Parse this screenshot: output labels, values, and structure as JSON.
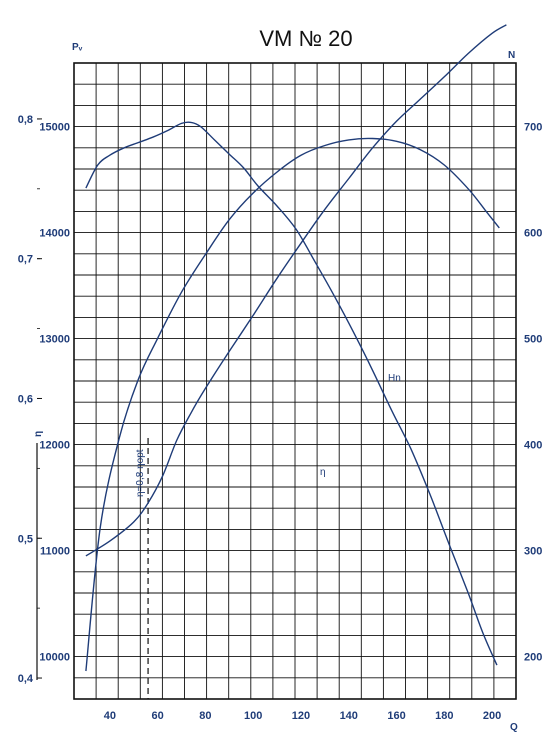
{
  "chart_data": {
    "type": "line",
    "title": "VM № 20",
    "x_axis": {
      "label": "Q",
      "range": [
        25,
        210
      ],
      "ticks": [
        40,
        60,
        80,
        100,
        120,
        140,
        160,
        180,
        200
      ]
    },
    "left_axis": {
      "label": "Pᵥ",
      "range": [
        9600,
        15600
      ],
      "ticks": [
        10000,
        11000,
        12000,
        13000,
        14000,
        15000
      ]
    },
    "right_axis": {
      "label": "N",
      "range": [
        160,
        760
      ],
      "ticks": [
        200,
        300,
        400,
        500,
        600,
        700
      ]
    },
    "eta_axis": {
      "label": "η",
      "range": [
        0.385,
        0.84
      ],
      "ticks": [
        "0,4",
        "0,5",
        "0,6",
        "0,7",
        "0,8"
      ]
    },
    "vertical_marker": {
      "x": 56,
      "label": "η=0,8 ηopt"
    },
    "grid": true,
    "series": [
      {
        "name": "Pᵥ",
        "axis": "left",
        "points": [
          [
            30,
            14420
          ],
          [
            35,
            14640
          ],
          [
            40,
            14730
          ],
          [
            46,
            14800
          ],
          [
            52,
            14850
          ],
          [
            58,
            14900
          ],
          [
            64,
            14960
          ],
          [
            70,
            15030
          ],
          [
            74,
            15040
          ],
          [
            78,
            15000
          ],
          [
            84,
            14870
          ],
          [
            90,
            14740
          ],
          [
            96,
            14610
          ],
          [
            102,
            14440
          ],
          [
            110,
            14250
          ],
          [
            118,
            14030
          ],
          [
            126,
            13720
          ],
          [
            134,
            13400
          ],
          [
            142,
            13060
          ],
          [
            150,
            12700
          ],
          [
            158,
            12320
          ],
          [
            166,
            11960
          ],
          [
            174,
            11530
          ],
          [
            182,
            11060
          ],
          [
            190,
            10600
          ],
          [
            196,
            10230
          ],
          [
            202,
            9920
          ]
        ]
      },
      {
        "name": "Hn",
        "axis": "right",
        "points": [
          [
            30,
            295
          ],
          [
            40,
            309
          ],
          [
            50,
            327
          ],
          [
            56,
            345
          ],
          [
            62,
            370
          ],
          [
            68,
            404
          ],
          [
            74,
            430
          ],
          [
            80,
            453
          ],
          [
            90,
            488
          ],
          [
            100,
            522
          ],
          [
            110,
            557
          ],
          [
            120,
            590
          ],
          [
            130,
            622
          ],
          [
            140,
            651
          ],
          [
            150,
            680
          ],
          [
            160,
            705
          ],
          [
            170,
            726
          ],
          [
            180,
            747
          ],
          [
            190,
            769
          ],
          [
            200,
            788
          ],
          [
            206,
            796
          ]
        ]
      },
      {
        "name": "η",
        "axis": "eta",
        "points": [
          [
            30,
            0.405
          ],
          [
            36,
            0.508
          ],
          [
            44,
            0.572
          ],
          [
            52,
            0.614
          ],
          [
            60,
            0.643
          ],
          [
            70,
            0.676
          ],
          [
            80,
            0.703
          ],
          [
            90,
            0.728
          ],
          [
            100,
            0.747
          ],
          [
            110,
            0.762
          ],
          [
            120,
            0.774
          ],
          [
            130,
            0.781
          ],
          [
            140,
            0.785
          ],
          [
            150,
            0.786
          ],
          [
            160,
            0.784
          ],
          [
            170,
            0.778
          ],
          [
            180,
            0.767
          ],
          [
            190,
            0.75
          ],
          [
            197,
            0.735
          ],
          [
            203,
            0.722
          ]
        ]
      }
    ],
    "series_labels": {
      "Hn": "Hn",
      "eta": "η"
    }
  },
  "colors": {
    "curve": "#1f3c78",
    "axis_text": "#1f3c78",
    "grid": "#111111",
    "title": "#111111"
  }
}
